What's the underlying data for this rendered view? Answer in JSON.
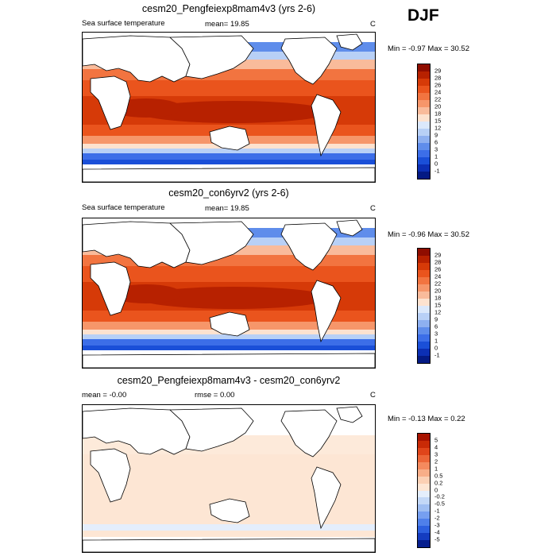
{
  "season": "DJF",
  "chart_data": [
    {
      "type": "heatmap",
      "title": "cesm20_Pengfeiexp8mam4v3 (yrs 2-6)",
      "variable": "Sea surface temperature",
      "mean_label": "mean=",
      "mean": "19.85",
      "units": "C",
      "minmax_label": "Min = -0.97 Max = 30.52",
      "min": -0.97,
      "max": 30.52,
      "contour_levels": [
        "29",
        "28",
        "26",
        "24",
        "22",
        "20",
        "18",
        "15",
        "12",
        "9",
        "6",
        "3",
        "1",
        "0",
        "-1"
      ],
      "colors": [
        "#8f0d00",
        "#b72100",
        "#d63a08",
        "#ea541d",
        "#f27440",
        "#f6966a",
        "#f9bb9b",
        "#fde2cf",
        "#dbe8fb",
        "#b8d0f6",
        "#8eb0f0",
        "#5f8deb",
        "#3c6ee8",
        "#1a4fd8",
        "#0c2fb4",
        "#041a84"
      ]
    },
    {
      "type": "heatmap",
      "title": "cesm20_con6yrv2 (yrs 2-6)",
      "variable": "Sea surface temperature",
      "mean_label": "mean=",
      "mean": "19.85",
      "units": "C",
      "minmax_label": "Min = -0.96 Max = 30.52",
      "min": -0.96,
      "max": 30.52,
      "contour_levels": [
        "29",
        "28",
        "26",
        "24",
        "22",
        "20",
        "18",
        "15",
        "12",
        "9",
        "6",
        "3",
        "1",
        "0",
        "-1"
      ],
      "colors": [
        "#8f0d00",
        "#b72100",
        "#d63a08",
        "#ea541d",
        "#f27440",
        "#f6966a",
        "#f9bb9b",
        "#fde2cf",
        "#dbe8fb",
        "#b8d0f6",
        "#8eb0f0",
        "#5f8deb",
        "#3c6ee8",
        "#1a4fd8",
        "#0c2fb4",
        "#041a84"
      ]
    },
    {
      "type": "heatmap",
      "title": "cesm20_Pengfeiexp8mam4v3 - cesm20_con6yrv2",
      "mean_label": "mean =",
      "mean": "-0.00",
      "rmse_label": "rmse =",
      "rmse": "0.00",
      "units": "C",
      "minmax_label": "Min = -0.13 Max = 0.22",
      "min": -0.13,
      "max": 0.22,
      "contour_levels": [
        "5",
        "4",
        "3",
        "2",
        "1",
        "0.5",
        "0.2",
        "0",
        "-0.2",
        "-0.5",
        "-1",
        "-2",
        "-3",
        "-4",
        "-5"
      ],
      "colors": [
        "#a81300",
        "#c92a06",
        "#e0451a",
        "#ec6638",
        "#f48a5e",
        "#f8ae88",
        "#fbd0b4",
        "#fde6d4",
        "#e4eefc",
        "#c3d8f7",
        "#9fbef2",
        "#769ff0",
        "#4f80ea",
        "#2d60df",
        "#143cc0",
        "#071f8e"
      ]
    }
  ]
}
